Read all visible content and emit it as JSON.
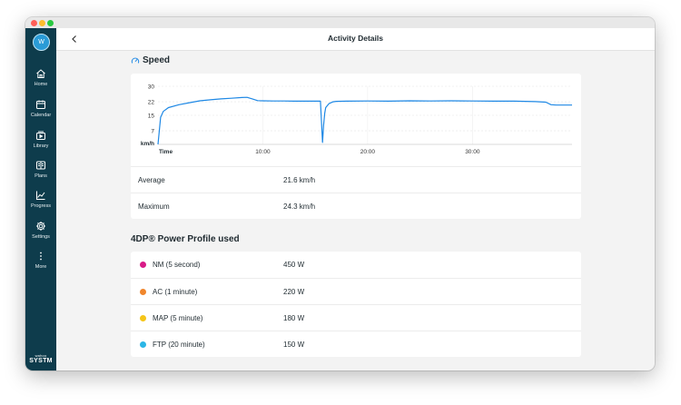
{
  "window": {
    "title": "Activity Details",
    "back_icon": "chevron-left-icon"
  },
  "sidebar": {
    "avatar_initial": "W",
    "items": [
      {
        "label": "Home",
        "icon": "home-icon"
      },
      {
        "label": "Calendar",
        "icon": "calendar-icon"
      },
      {
        "label": "Library",
        "icon": "library-icon"
      },
      {
        "label": "Plans",
        "icon": "plans-icon"
      },
      {
        "label": "Progress",
        "icon": "progress-icon"
      },
      {
        "label": "Settings",
        "icon": "gear-icon"
      },
      {
        "label": "More",
        "icon": "more-icon"
      }
    ],
    "brand_top": "wahoo",
    "brand_bottom": "SYSTM"
  },
  "speed": {
    "title": "Speed",
    "icon": "speedometer-icon",
    "stats": [
      {
        "label": "Average",
        "value": "21.6 km/h"
      },
      {
        "label": "Maximum",
        "value": "24.3 km/h"
      }
    ]
  },
  "chart_data": {
    "type": "line",
    "xlabel": "Time",
    "ylabel": "km/h",
    "y_ticks": [
      7,
      15,
      22,
      30
    ],
    "x_ticks": [
      "10:00",
      "20:00",
      "30:00"
    ],
    "x_tick_minutes": [
      10,
      20,
      30
    ],
    "xlim": [
      0,
      39.5
    ],
    "ylim": [
      0,
      30
    ],
    "grid": true,
    "series": [
      {
        "color": "#1e88e5",
        "x": [
          0,
          0.25,
          0.5,
          1,
          2,
          3,
          4,
          5,
          6,
          7,
          8,
          8.5,
          9,
          9.5,
          10,
          11,
          12,
          13,
          14,
          15,
          15.5,
          15.7,
          15.8,
          15.9,
          16.0,
          16.3,
          16.7,
          17,
          18,
          20,
          22,
          24,
          26,
          28,
          30,
          32,
          34,
          35,
          36,
          37,
          37.5,
          38,
          39.5
        ],
        "values": [
          0,
          14,
          17,
          19,
          20.5,
          21.5,
          22.5,
          23,
          23.5,
          23.8,
          24.2,
          24.3,
          23.5,
          22.6,
          22.5,
          22.4,
          22.4,
          22.3,
          22.3,
          22.3,
          22.3,
          1,
          10,
          16,
          19,
          21,
          22,
          22.2,
          22.3,
          22.4,
          22.3,
          22.5,
          22.4,
          22.5,
          22.4,
          22.3,
          22.3,
          22.2,
          22.1,
          21.8,
          20.5,
          20.3,
          20.3
        ]
      }
    ]
  },
  "power_profile": {
    "title": "4DP® Power Profile used",
    "rows": [
      {
        "label": "NM (5 second)",
        "value": "450 W",
        "color": "#d81b87"
      },
      {
        "label": "AC (1 minute)",
        "value": "220 W",
        "color": "#f0862c"
      },
      {
        "label": "MAP (5 minute)",
        "value": "180 W",
        "color": "#f5c518"
      },
      {
        "label": "FTP (20 minute)",
        "value": "150 W",
        "color": "#2bb6e6"
      }
    ]
  }
}
